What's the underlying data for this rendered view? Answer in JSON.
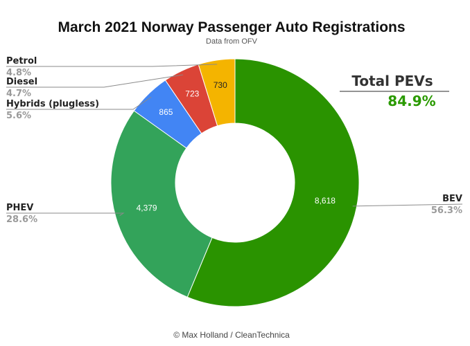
{
  "chart_data": {
    "type": "pie",
    "donut": true,
    "title": "March 2021 Norway Passenger Auto Registrations",
    "subtitle": "Data from OFV",
    "credit": "© Max Holland / CleanTechnica",
    "slices": [
      {
        "label": "BEV",
        "value": 8618,
        "value_label": "8,618",
        "percent": "56.3%",
        "color": "#2a9300",
        "label_color": "#ffffff"
      },
      {
        "label": "PHEV",
        "value": 4379,
        "value_label": "4,379",
        "percent": "28.6%",
        "color": "#33a35a",
        "label_color": "#ffffff"
      },
      {
        "label": "Hybrids (plugless)",
        "value": 865,
        "value_label": "865",
        "percent": "5.6%",
        "color": "#4285f4",
        "label_color": "#ffffff"
      },
      {
        "label": "Diesel",
        "value": 723,
        "value_label": "723",
        "percent": "4.7%",
        "color": "#db4437",
        "label_color": "#ffffff"
      },
      {
        "label": "Petrol",
        "value": 730,
        "value_label": "730",
        "percent": "4.8%",
        "color": "#f4b400",
        "label_color": "#222222"
      }
    ],
    "callout": {
      "label": "Total PEVs",
      "value": "84.9%"
    },
    "legend": "none"
  }
}
